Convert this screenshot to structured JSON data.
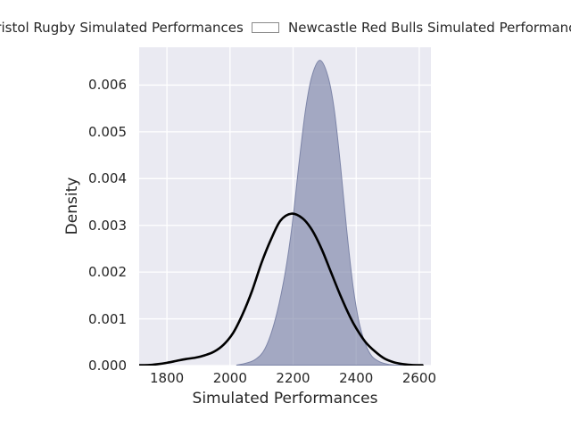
{
  "figure": {
    "background": "#ffffff",
    "plot_background": "#eaeaf2",
    "grid_color": "#ffffff",
    "text_color": "#262626"
  },
  "legend": {
    "position": "top",
    "items": [
      {
        "label": "Bristol Rugby Simulated Performances",
        "swatch_fill": "#aab0c8",
        "swatch_border": "#8a8a8a"
      },
      {
        "label": "Newcastle Red Bulls Simulated Performances",
        "swatch_fill": "#ffffff",
        "swatch_border": "#8a8a8a"
      }
    ]
  },
  "chart_data": {
    "type": "area",
    "subtype": "kde-density",
    "title": "",
    "xlabel": "Simulated Performances",
    "ylabel": "Density",
    "xlim": [
      1712,
      2637
    ],
    "ylim": [
      0,
      0.00681
    ],
    "grid": true,
    "legend_position": "top",
    "x_ticks": {
      "values": [
        1800,
        2000,
        2200,
        2400,
        2600
      ],
      "labels": [
        "1800",
        "2000",
        "2200",
        "2400",
        "2600"
      ]
    },
    "y_ticks": {
      "values": [
        0,
        0.001,
        0.002,
        0.003,
        0.004,
        0.005,
        0.006
      ],
      "labels": [
        "0.000",
        "0.001",
        "0.002",
        "0.003",
        "0.004",
        "0.005",
        "0.006"
      ]
    },
    "series": [
      {
        "name": "Bristol Rugby Simulated Performances",
        "style": "filled-area",
        "fill_color": "rgba(119,127,164,0.62)",
        "line_color": "#7d85a8",
        "line_width": 1,
        "peak": {
          "x": 2285,
          "y": 0.00653
        },
        "points": [
          [
            2020,
            0
          ],
          [
            2050,
            5e-05
          ],
          [
            2080,
            0.00013
          ],
          [
            2110,
            0.00035
          ],
          [
            2140,
            0.0009
          ],
          [
            2170,
            0.0018
          ],
          [
            2195,
            0.0029
          ],
          [
            2220,
            0.0044
          ],
          [
            2240,
            0.0055
          ],
          [
            2260,
            0.0062
          ],
          [
            2285,
            0.00653
          ],
          [
            2310,
            0.0062
          ],
          [
            2330,
            0.0055
          ],
          [
            2350,
            0.0043
          ],
          [
            2370,
            0.0029
          ],
          [
            2390,
            0.0017
          ],
          [
            2410,
            0.0009
          ],
          [
            2430,
            0.00045
          ],
          [
            2450,
            0.0002
          ],
          [
            2475,
            8e-05
          ],
          [
            2500,
            3e-05
          ],
          [
            2530,
            1e-05
          ],
          [
            2560,
            0
          ]
        ]
      },
      {
        "name": "Newcastle Red Bulls Simulated Performances",
        "style": "line",
        "line_color": "#000000",
        "line_width": 2.6,
        "peak": {
          "x": 2195,
          "y": 0.00325
        },
        "points": [
          [
            1712,
            0
          ],
          [
            1740,
            1e-05
          ],
          [
            1770,
            3e-05
          ],
          [
            1800,
            6e-05
          ],
          [
            1830,
            0.0001
          ],
          [
            1860,
            0.00014
          ],
          [
            1890,
            0.00017
          ],
          [
            1920,
            0.00022
          ],
          [
            1950,
            0.0003
          ],
          [
            1980,
            0.00045
          ],
          [
            2010,
            0.0007
          ],
          [
            2040,
            0.0011
          ],
          [
            2070,
            0.0016
          ],
          [
            2100,
            0.0022
          ],
          [
            2130,
            0.0027
          ],
          [
            2160,
            0.0031
          ],
          [
            2195,
            0.00325
          ],
          [
            2230,
            0.00315
          ],
          [
            2260,
            0.0029
          ],
          [
            2290,
            0.0025
          ],
          [
            2320,
            0.002
          ],
          [
            2350,
            0.0015
          ],
          [
            2380,
            0.00105
          ],
          [
            2400,
            0.0008
          ],
          [
            2430,
            0.0005
          ],
          [
            2460,
            0.0003
          ],
          [
            2490,
            0.00015
          ],
          [
            2520,
            7e-05
          ],
          [
            2550,
            3e-05
          ],
          [
            2580,
            1e-05
          ],
          [
            2610,
            0
          ]
        ]
      }
    ]
  }
}
